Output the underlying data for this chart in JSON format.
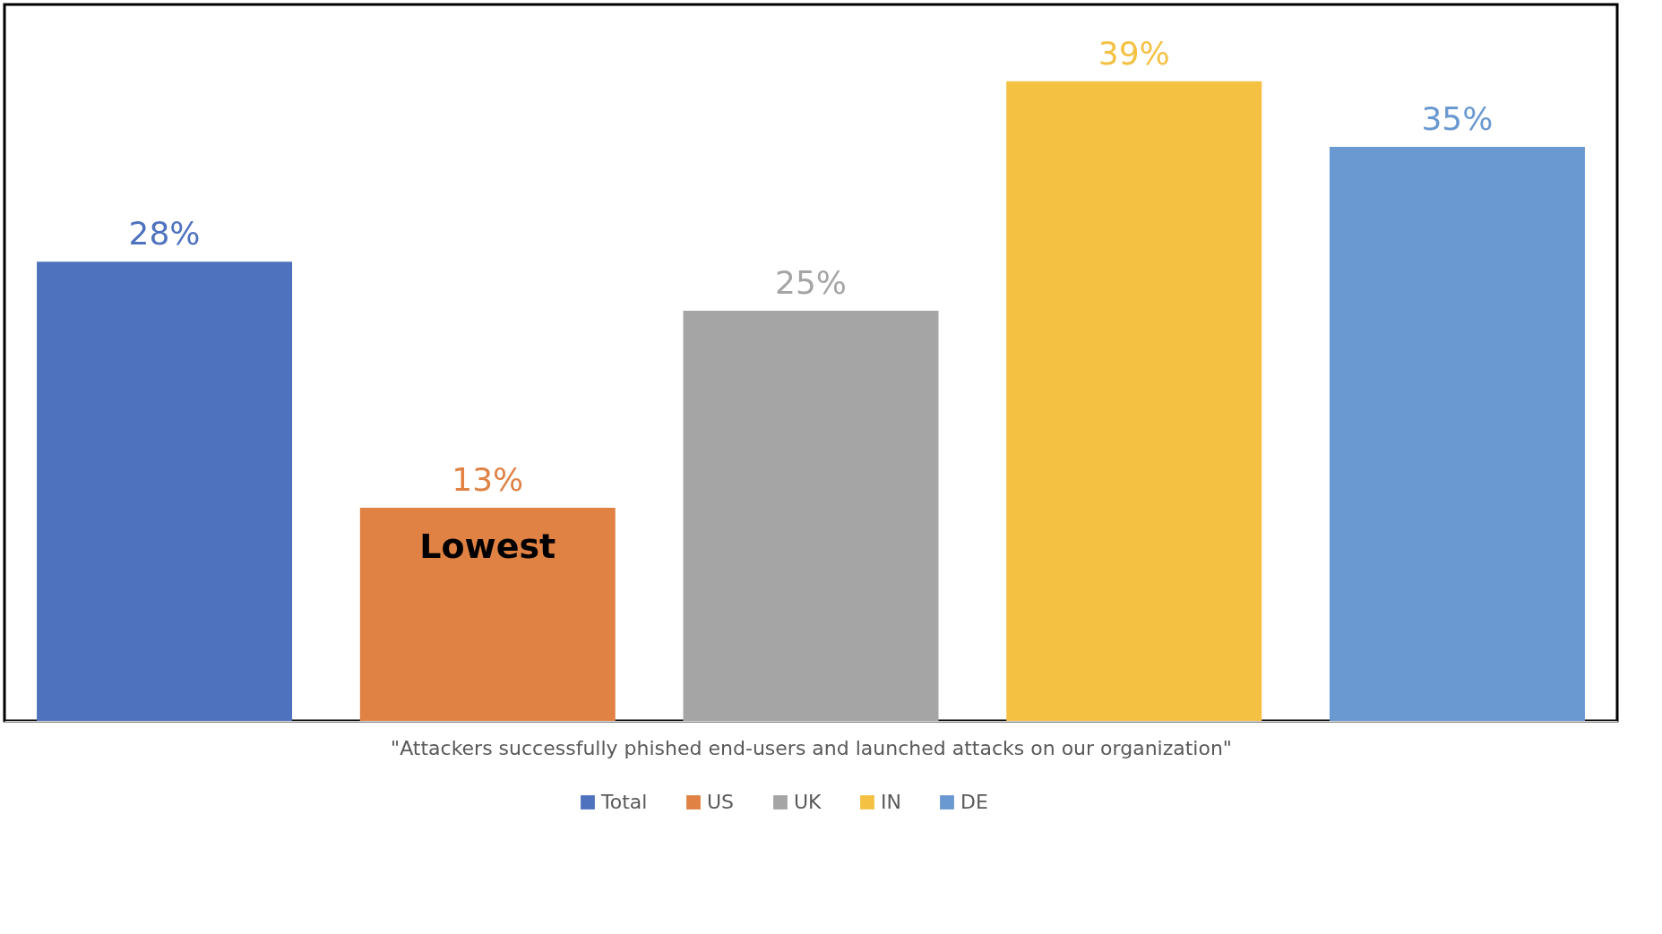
{
  "chart_data": {
    "type": "bar",
    "categories": [
      null
    ],
    "xlabel": "\"Attackers successfully phished end-users and launched attacks on our organization\"",
    "series": [
      {
        "name": "Total",
        "color": "#4e72be",
        "values": [
          28
        ],
        "value_labels": [
          "28%"
        ]
      },
      {
        "name": "US",
        "color": "#df8244",
        "values": [
          13
        ],
        "value_labels": [
          "13%"
        ]
      },
      {
        "name": "UK",
        "color": "#a5a5a5",
        "values": [
          25
        ],
        "value_labels": [
          "25%"
        ]
      },
      {
        "name": "IN",
        "color": "#f4c143",
        "values": [
          39
        ],
        "value_labels": [
          "39%"
        ]
      },
      {
        "name": "DE",
        "color": "#6a98d0",
        "values": [
          35
        ],
        "value_labels": [
          "35%"
        ]
      }
    ],
    "legend": "bottom",
    "grid": false,
    "tick_labels": false,
    "annotations": [
      {
        "text": "Lowest",
        "y": 13
      }
    ]
  }
}
